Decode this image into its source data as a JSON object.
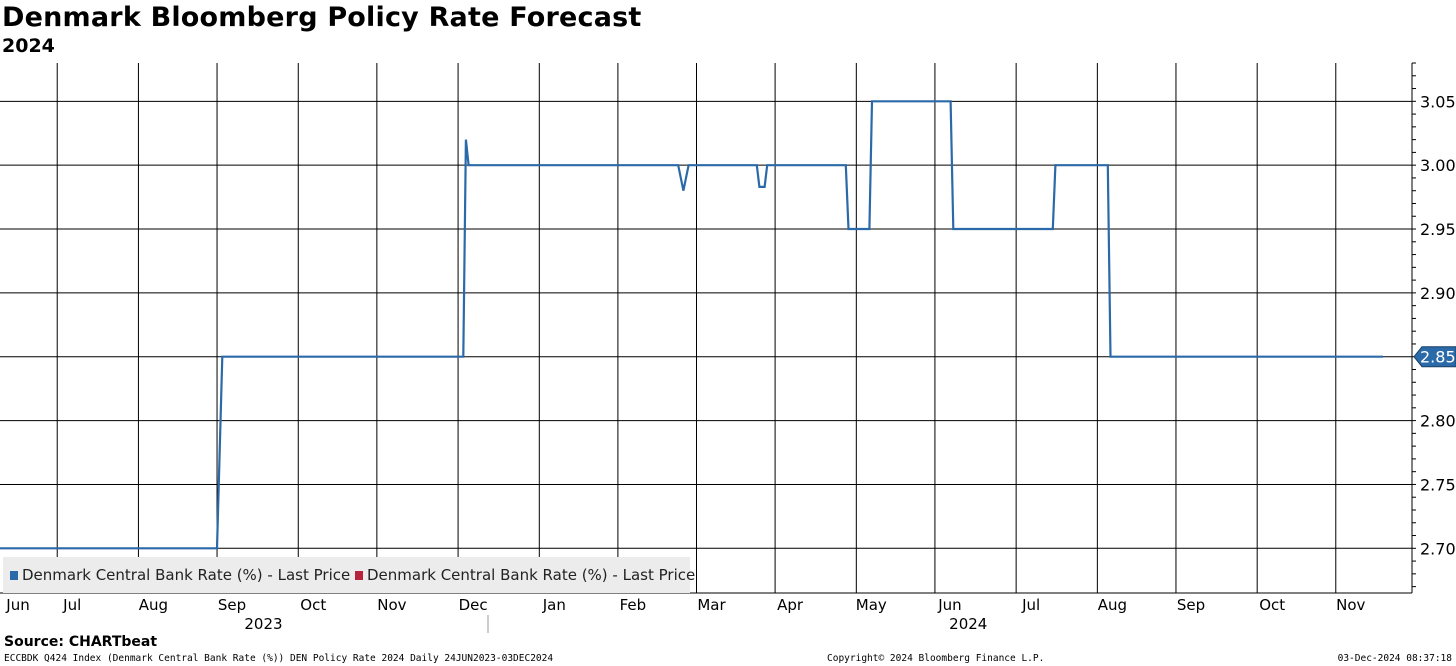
{
  "title": "Denmark Bloomberg Policy Rate Forecast",
  "subtitle": "2024",
  "chart_data": {
    "type": "line",
    "title": "Denmark Bloomberg Policy Rate Forecast",
    "subtitle": "2024",
    "ylim": [
      2.665,
      3.08
    ],
    "yticks": [
      2.7,
      2.75,
      2.8,
      2.85,
      2.9,
      2.95,
      3.0,
      3.05
    ],
    "ytick_labels": [
      "2.70",
      "2.75",
      "2.80",
      "2.85",
      "2.90",
      "2.95",
      "3.00",
      "3.05"
    ],
    "xrange": [
      "2023-06-24",
      "2024-12-03"
    ],
    "month_ticks": [
      {
        "label": "Jun",
        "date": "2023-06-15"
      },
      {
        "label": "Jul",
        "date": "2023-07-16"
      },
      {
        "label": "Aug",
        "date": "2023-08-16"
      },
      {
        "label": "Sep",
        "date": "2023-09-15"
      },
      {
        "label": "Oct",
        "date": "2023-10-16"
      },
      {
        "label": "Nov",
        "date": "2023-11-15"
      },
      {
        "label": "Dec",
        "date": "2023-12-16"
      },
      {
        "label": "Jan",
        "date": "2024-01-16"
      },
      {
        "label": "Feb",
        "date": "2024-02-15"
      },
      {
        "label": "Mar",
        "date": "2024-03-16"
      },
      {
        "label": "Apr",
        "date": "2024-04-15"
      },
      {
        "label": "May",
        "date": "2024-05-16"
      },
      {
        "label": "Jun",
        "date": "2024-06-15"
      },
      {
        "label": "Jul",
        "date": "2024-07-16"
      },
      {
        "label": "Aug",
        "date": "2024-08-16"
      },
      {
        "label": "Sep",
        "date": "2024-09-15"
      },
      {
        "label": "Oct",
        "date": "2024-10-16"
      },
      {
        "label": "Nov",
        "date": "2024-11-15"
      }
    ],
    "year_labels": [
      {
        "label": "2023",
        "date": "2023-09-27"
      },
      {
        "label": "2024",
        "date": "2024-06-22"
      }
    ],
    "year_divider": "2024-01-01",
    "series": [
      {
        "name": "Denmark Central Bank Rate (%) - Last Price",
        "color": "#2b6aa8",
        "points": [
          [
            "2023-06-24",
            2.7
          ],
          [
            "2023-09-15",
            2.7
          ],
          [
            "2023-09-17",
            2.85
          ],
          [
            "2023-12-18",
            2.85
          ],
          [
            "2023-12-19",
            3.02
          ],
          [
            "2023-12-20",
            3.0
          ],
          [
            "2024-03-09",
            3.0
          ],
          [
            "2024-03-11",
            2.98
          ],
          [
            "2024-03-13",
            3.0
          ],
          [
            "2024-04-08",
            3.0
          ],
          [
            "2024-04-09",
            2.983
          ],
          [
            "2024-04-11",
            2.983
          ],
          [
            "2024-04-12",
            3.0
          ],
          [
            "2024-05-12",
            3.0
          ],
          [
            "2024-05-13",
            2.95
          ],
          [
            "2024-05-21",
            2.95
          ],
          [
            "2024-05-22",
            3.05
          ],
          [
            "2024-06-21",
            3.05
          ],
          [
            "2024-06-22",
            2.95
          ],
          [
            "2024-07-30",
            2.95
          ],
          [
            "2024-07-31",
            3.0
          ],
          [
            "2024-08-20",
            3.0
          ],
          [
            "2024-08-21",
            2.85
          ],
          [
            "2024-12-03",
            2.85
          ]
        ]
      },
      {
        "name": "Denmark Central Bank Rate (%) - Last Price",
        "color": "#b5243a",
        "points": []
      }
    ],
    "last_value_label": "2.85",
    "legend_position": "bottom-left"
  },
  "legend": [
    {
      "label": "Denmark Central Bank Rate (%) - Last Price",
      "color": "#2b6aa8"
    },
    {
      "label": "Denmark Central Bank Rate (%) - Last Price",
      "color": "#b5243a"
    }
  ],
  "source": "Source: CHARTbeat",
  "footer": {
    "left": "ECCBDK Q424 Index (Denmark Central Bank Rate (%)) DEN Policy Rate 2024  Daily 24JUN2023-03DEC2024",
    "center": "Copyright© 2024 Bloomberg Finance L.P.",
    "right": "03-Dec-2024 08:37:18"
  }
}
